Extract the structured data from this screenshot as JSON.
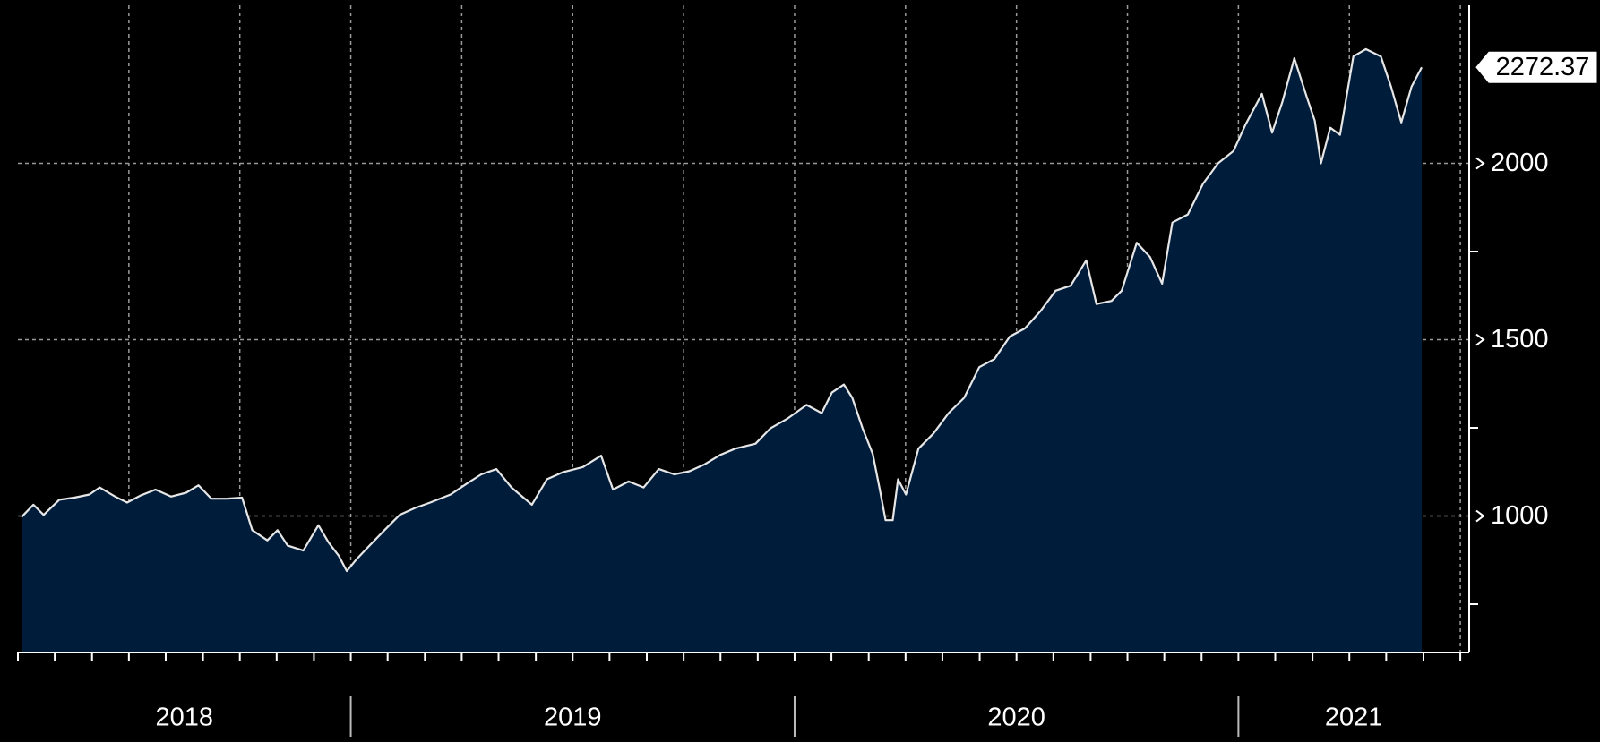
{
  "chart_data": {
    "type": "area",
    "x": [
      2018.258,
      2018.285,
      2018.308,
      2018.343,
      2018.377,
      2018.411,
      2018.434,
      2018.469,
      2018.496,
      2018.526,
      2018.56,
      2018.595,
      2018.629,
      2018.657,
      2018.686,
      2018.721,
      2018.755,
      2018.778,
      2018.812,
      2018.835,
      2018.858,
      2018.893,
      2018.927,
      2018.95,
      2018.973,
      2018.991,
      2019.014,
      2019.042,
      2019.076,
      2019.11,
      2019.145,
      2019.179,
      2019.225,
      2019.259,
      2019.294,
      2019.328,
      2019.362,
      2019.408,
      2019.442,
      2019.477,
      2019.523,
      2019.564,
      2019.591,
      2019.626,
      2019.66,
      2019.694,
      2019.729,
      2019.763,
      2019.798,
      2019.832,
      2019.866,
      2019.912,
      2019.946,
      2019.985,
      2020.027,
      2020.061,
      2020.084,
      2020.111,
      2020.13,
      2020.153,
      2020.176,
      2020.192,
      2020.205,
      2020.221,
      2020.233,
      2020.251,
      2020.279,
      2020.313,
      2020.347,
      2020.382,
      2020.416,
      2020.45,
      2020.485,
      2020.519,
      2020.554,
      2020.588,
      2020.622,
      2020.657,
      2020.68,
      2020.714,
      2020.737,
      2020.771,
      2020.801,
      2020.828,
      2020.851,
      2020.886,
      2020.92,
      2020.954,
      2020.989,
      2021.016,
      2021.053,
      2021.076,
      2021.099,
      2021.126,
      2021.154,
      2021.172,
      2021.186,
      2021.207,
      2021.229,
      2021.259,
      2021.287,
      2021.321,
      2021.344,
      2021.367,
      2021.39,
      2021.413
    ],
    "values": [
      997,
      1032,
      1003,
      1046,
      1052,
      1061,
      1081,
      1055,
      1038,
      1058,
      1075,
      1055,
      1066,
      1087,
      1049,
      1049,
      1052,
      960,
      931,
      960,
      916,
      902,
      974,
      925,
      887,
      844,
      879,
      916,
      960,
      1003,
      1023,
      1038,
      1061,
      1090,
      1118,
      1133,
      1081,
      1032,
      1104,
      1124,
      1139,
      1171,
      1075,
      1098,
      1081,
      1133,
      1118,
      1127,
      1147,
      1173,
      1191,
      1205,
      1249,
      1277,
      1315,
      1292,
      1350,
      1373,
      1335,
      1249,
      1176,
      1075,
      988,
      988,
      1104,
      1061,
      1191,
      1234,
      1292,
      1335,
      1422,
      1445,
      1509,
      1532,
      1581,
      1639,
      1653,
      1725,
      1601,
      1610,
      1639,
      1775,
      1734,
      1659,
      1832,
      1855,
      1942,
      2000,
      2035,
      2110,
      2197,
      2087,
      2174,
      2298,
      2188,
      2121,
      2000,
      2101,
      2081,
      2303,
      2324,
      2303,
      2217,
      2116,
      2217,
      2272.37
    ],
    "line_color": "#e6e6e6",
    "fill_color": "#001c3b",
    "xlim": [
      2018.25,
      2021.52
    ],
    "ylim": [
      613,
      2448
    ],
    "yticks": [
      1000,
      1500,
      2000
    ],
    "yminorticks": [
      750,
      1250,
      1750
    ],
    "xticks": [
      2018.25,
      2018.333,
      2018.417,
      2018.5,
      2018.583,
      2018.667,
      2018.75,
      2018.833,
      2018.917,
      2019,
      2019.083,
      2019.167,
      2019.25,
      2019.333,
      2019.417,
      2019.5,
      2019.583,
      2019.667,
      2019.75,
      2019.833,
      2019.917,
      2020,
      2020.083,
      2020.167,
      2020.25,
      2020.333,
      2020.417,
      2020.5,
      2020.583,
      2020.667,
      2020.75,
      2020.833,
      2020.917,
      2021,
      2021.083,
      2021.167,
      2021.25,
      2021.333,
      2021.417,
      2021.5
    ],
    "xgrid": [
      2018.5,
      2018.75,
      2019,
      2019.25,
      2019.5,
      2019.75,
      2020,
      2020.25,
      2020.5,
      2020.75,
      2021,
      2021.25,
      2021.5
    ],
    "x_period_labels": [
      "2018",
      "2019",
      "2020",
      "2021"
    ],
    "grid": true
  }
}
